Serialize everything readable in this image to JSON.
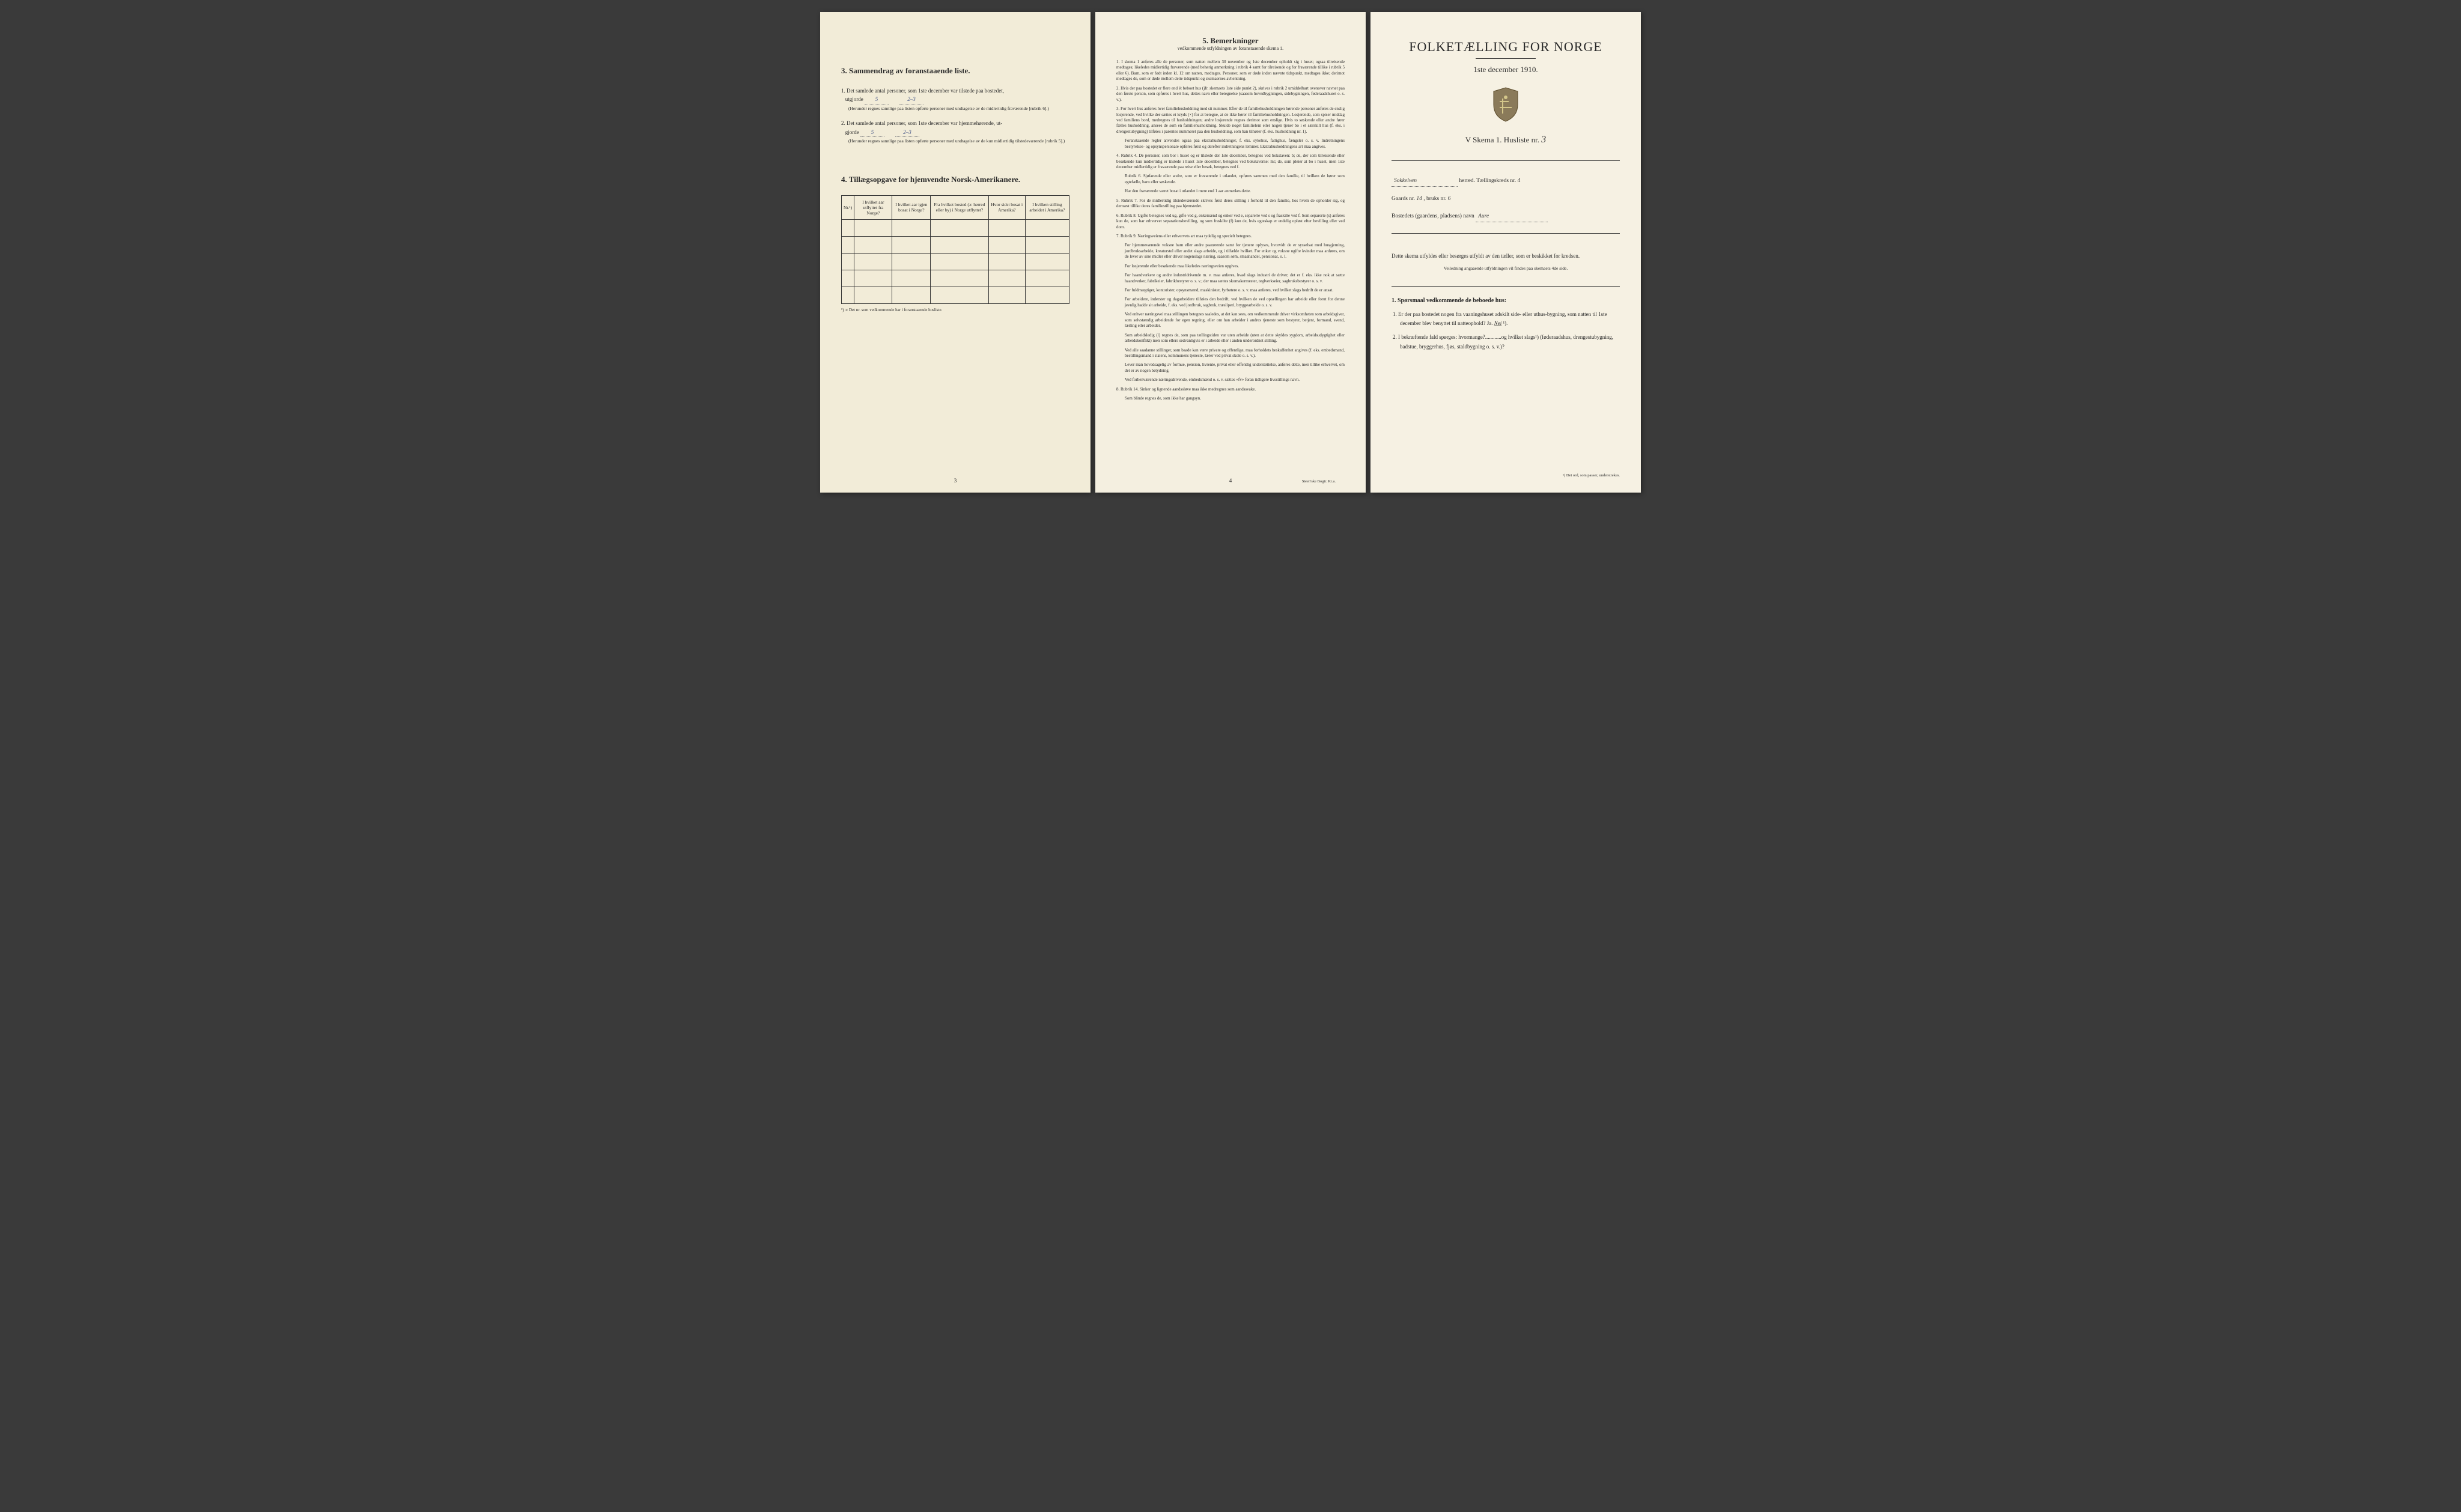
{
  "left": {
    "section3_heading": "3.  Sammendrag av foranstaaende liste.",
    "item1_text": "1. Det samlede antal personer, som 1ste december var tilstede paa bostedet,",
    "item1_utgjorde": "utgjorde",
    "item1_val1": "5",
    "item1_val2": "2–3",
    "item1_note": "(Herunder regnes samtlige paa listen opførte personer med undtagelse av de midlertidig fraværende [rubrik 6].)",
    "item2_text": "2. Det samlede antal personer, som 1ste december var hjemmehørende, ut-",
    "item2_gjorde": "gjorde",
    "item2_val1": "5",
    "item2_val2": "2–3",
    "item2_note": "(Herunder regnes samtlige paa listen opførte personer med undtagelse av de kun midlertidig tilstedeværende [rubrik 5].)",
    "section4_heading": "4.  Tillægsopgave for hjemvendte Norsk-Amerikanere.",
    "table_headers": [
      "Nr.¹)",
      "I hvilket aar utflyttet fra Norge?",
      "I hvilket aar igjen bosat i Norge?",
      "Fra hvilket bosted (ɔ: herred eller by) i Norge utflyttet?",
      "Hvor sidst bosat i Amerika?",
      "I hvilken stilling arbeidet i Amerika?"
    ],
    "table_rows": 5,
    "table_footnote": "¹) ɔ: Det nr. som vedkommende har i foranstaaende husliste.",
    "page_num": "3"
  },
  "middle": {
    "heading": "5.  Bemerkninger",
    "subhead": "vedkommende utfyldningen av foranstaaende skema 1.",
    "items": [
      "1. I skema 1 anføres alle de personer, som natten mellem 30 november og 1ste december opholdt sig i huset; ogsaa tilreisende medtages; likeledes midlertidig fraværende (med behørig anmerkning i rubrik 4 samt for tilreisende og for fraværende tillike i rubrik 5 eller 6). Barn, som er født inden kl. 12 om natten, medtages. Personer, som er døde inden nævnte tidspunkt, medtages ikke; derimot medtages de, som er døde mellem dette tidspunkt og skemaernes avhentning.",
      "2. Hvis der paa bostedet er flere end ét beboet hus (jfr. skemaets 1ste side punkt 2), skrives i rubrik 2 umiddelbart ovenover navnet paa den første person, som opføres i hvert hus, dettes navn eller betegnelse (saasom hovedbygningen, sidebygningen, føderaadshuset o. s. v.).",
      "3. For hvert hus anføres hver familiehusholdning med sit nummer. Efter de til familiehusholdningen hørende personer anføres de enslig losjerende, ved hvilke der sættes et kryds (×) for at betegne, at de ikke hører til familiehusholdningen. Losjerende, som spiser middag ved familiens bord, medregnes til husholdningen; andre losjerende regnes derimot som enslige. Hvis to søskende eller andre fører fælles husholdning, ansees de som en familiehusholdning. Skulde noget familielem eller nogen tjener bo i et særskilt hus (f. eks. i drengestubygning) tilføies i parentes nummeret paa den husholdning, som han tilhører (f. eks. husholdning nr. 1).",
      "Foranstaaende regler anvendes ogsaa paa ekstrahusholdninger, f. eks. sykehus, fattighus, fængsler o. s. v. Indretningens bestyrelses- og opsynspersonale opføres først og derefter indretningens lemmer. Ekstrahusholdningens art maa angives.",
      "4. Rubrik 4. De personer, som bor i huset og er tilstede der 1ste december, betegnes ved bokstaven: b; de, der som tilreisende eller besøkende kun midlertidig er tilstede i huset 1ste december, betegnes ved bokstaverne: mt; de, som pleier at bo i huset, men 1ste december midlertidig er fraværende paa reise eller besøk, betegnes ved f.",
      "Rubrik 6. Sjøfarende eller andre, som er fraværende i utlandet, opføres sammen med den familie, til hvilken de hører som egtefælle, barn eller søskende.",
      "Har den fraværende været bosat i utlandet i mere end 1 aar anmerkes dette.",
      "5. Rubrik 7. For de midlertidig tilstedeværende skrives først deres stilling i forhold til den familie, hos hvem de opholder sig, og dernæst tillike deres familiestilling paa hjemstedet.",
      "6. Rubrik 8. Ugifte betegnes ved ug, gifte ved g, enkemænd og enker ved e, separerte ved s og fraskilte ved f. Som separerte (s) anføres kun de, som har erhvervet separationsbevilling, og som fraskilte (f) kun de, hvis egteskap er endelig opløst efter bevilling eller ved dom.",
      "7. Rubrik 9. Næringsveiens eller erhvervets art maa tydelig og specielt betegnes.",
      "For hjemmeværende voksne barn eller andre paarørende samt for tjenere oplyses, hvorvidt de er sysselsat med husgjerning, jordbruksarbeide, kreaturstel eller andet slags arbeide, og i tilfælde hvilket. For enker og voksne ugifte kvinder maa anføres, om de lever av sine midler eller driver nogenslags næring, saasom søm, smaahandel, pensionat, o. l.",
      "For losjerende eller besøkende maa likeledes næringsveien opgives.",
      "For haandverkere og andre industridrivende m. v. maa anføres, hvad slags industri de driver; det er f. eks. ikke nok at sætte haandverker, fabrikeier, fabrikbestyrer o. s. v.; der maa sættes skomakermester, teglverkseier, sagbruksbestyrer o. s. v.",
      "For fuldmægtiger, kontorister, opsynsmænd, maskinister, fyrbøtere o. s. v. maa anføres, ved hvilket slags bedrift de er ansat.",
      "For arbeidere, inderster og dagarbeidere tilføies den bedrift, ved hvilken de ved optællingen har arbeide eller forut for denne jevnlig hadde sit arbeide, f. eks. ved jordbruk, sagbruk, træsliperi, bryggearbeide o. s. v.",
      "Ved enhver næringsvei maa stillingen betegnes saaledes, at det kan sees, om vedkommende driver virksomheten som arbeidsgiver, som selvstændig arbeidende for egen regning, eller om han arbeider i andres tjeneste som bestyrer, betjent, formand, svend, lærling eller arbeider.",
      "Som arbeidsledig (l) regnes de, som paa tællingstiden var uten arbeide (uten at dette skyldes sygdom, arbeidsudygtighet eller arbeidskonflikt) men som ellers sedvanligvis er i arbeide eller i anden underordnet stilling.",
      "Ved alle saadanne stillinger, som baade kan være private og offentlige, maa forholdets beskaffenhet angives (f. eks. embedsmand, bestillingsmand i statens, kommunens tjeneste, lærer ved privat skole o. s. v.).",
      "Lever man hovedsagelig av formue, pension, livrente, privat eller offentlig understøttelse, anføres dette, men tillike erhvervet, om det er av nogen betydning.",
      "Ved forhenværende næringsdrivende, embedsmænd o. s. v. sættes «fv» foran tidligere livsstillings navn.",
      "8. Rubrik 14. Sinker og lignende aandssløve maa ikke medregnes som aandssvake.",
      "Som blinde regnes de, som ikke har gangsyn."
    ],
    "page_num": "4",
    "printer": "Steen'ske Bogtr. Kr.a."
  },
  "right": {
    "title": "FOLKETÆLLING FOR NORGE",
    "date": "1ste december 1910.",
    "skema_prefix": "V Skema 1.  Husliste nr.",
    "skema_nr": "3",
    "herred_label": "herred.  Tællingskreds nr.",
    "herred_val": "Sokkelven",
    "kreds_nr": "4",
    "gaards_label": "Gaards nr.",
    "gaards_nr": "14",
    "bruks_label": ", bruks nr.",
    "bruks_nr": "6",
    "bosted_label": "Bostedets (gaardens, pladsens) navn",
    "bosted_val": "Aure",
    "instruction": "Dette skema utfyldes eller besørges utfyldt av den tæller, som er beskikket for kredsen.",
    "instruction_small": "Veiledning angaaende utfyldningen vil findes paa skemaets 4de side.",
    "q_heading": "1. Spørsmaal vedkommende de beboede hus:",
    "q1": "1. Er der paa bostedet nogen fra vaaningshuset adskilt side- eller uthus-bygning, som natten til 1ste december blev benyttet til natteophold?   Ja.   Nei ¹).",
    "q2": "2. I bekræftende fald spørges: hvormange?............og hvilket slags¹) (føderaadshus, drengestubygning, badstue, bryggerhus, fjøs, staldbygning o. s. v.)?",
    "bottom_note": "¹) Det ord, som passer, understrekes."
  }
}
